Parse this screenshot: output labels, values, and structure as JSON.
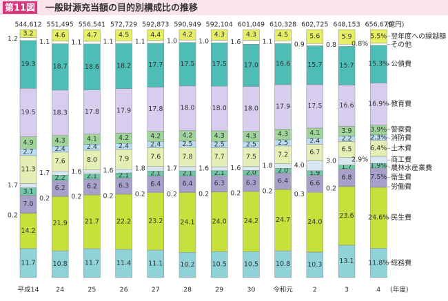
{
  "chart_data": {
    "type": "stacked_bar",
    "figure_label": "第11図",
    "title": "一般財源充当額の目的別構成比の推移",
    "categories": [
      "平成14",
      "24",
      "25",
      "26",
      "27",
      "28",
      "29",
      "30",
      "令和元",
      "2",
      "3",
      "4"
    ],
    "x_unit": "(年度)",
    "totals": {
      "unit": "(億円)",
      "values": [
        544612,
        551495,
        556541,
        572729,
        592873,
        590949,
        592104,
        601049,
        610328,
        602725,
        648153,
        656679
      ],
      "value_labels": [
        "544,612",
        "551,495",
        "556,541",
        "572,729",
        "592,873",
        "590,949",
        "592,104",
        "601,049",
        "610,328",
        "602,725",
        "648,153",
        "656,679"
      ]
    },
    "series": [
      {
        "name": "総務費",
        "color": "#8fd3d8",
        "values": [
          11.7,
          10.8,
          11.7,
          11.4,
          11.1,
          10.2,
          10.5,
          10.5,
          10.8,
          10.3,
          13.1,
          11.8
        ],
        "value_labels": [
          "11.7",
          "10.8",
          "11.7",
          "11.4",
          "11.1",
          "10.2",
          "10.5",
          "10.5",
          "10.8",
          "10.3",
          "13.1",
          "11.8%"
        ]
      },
      {
        "name": "民生費",
        "color": "#c8e03c",
        "values": [
          14.2,
          21.9,
          21.7,
          22.2,
          23.2,
          24.1,
          24.0,
          24.2,
          24.7,
          24.0,
          23.6,
          24.6
        ],
        "value_labels": [
          "14.2",
          "21.9",
          "21.7",
          "22.2",
          "23.2",
          "24.1",
          "24.0",
          "24.2",
          "24.7",
          "24.0",
          "23.6",
          "24.6%"
        ]
      },
      {
        "name": "労働費",
        "color": "#ffffff",
        "values": [
          0.2,
          0.2,
          0.2,
          0.2,
          0.2,
          0.2,
          0.2,
          0.2,
          0.2,
          0.3,
          0.2,
          0.2
        ],
        "value_labels": [
          "0.2",
          "0.2",
          "0.2",
          "0.2",
          "0.2",
          "0.2",
          "0.2",
          "0.2",
          "0.2",
          "0.3",
          "0.2",
          null
        ]
      },
      {
        "name": "衛生費",
        "color": "#a99fcb",
        "values": [
          7.0,
          6.2,
          6.2,
          6.3,
          6.4,
          6.4,
          6.3,
          6.3,
          6.4,
          6.6,
          6.8,
          7.5
        ],
        "value_labels": [
          "7.0",
          "6.2",
          "6.2",
          "6.3",
          "6.4",
          "6.4",
          "6.3",
          "6.3",
          "6.4",
          "6.6",
          "6.8",
          "7.5%"
        ]
      },
      {
        "name": "農林水産業費",
        "color": "#6fc7a6",
        "values": [
          3.1,
          2.2,
          2.1,
          2.1,
          2.1,
          2.1,
          2.1,
          2.0,
          2.0,
          1.9,
          1.7,
          1.9
        ],
        "value_labels": [
          "3.1",
          "2.2",
          "2.1",
          "2.1",
          "2.1",
          "2.1",
          "2.1",
          "2.0",
          "2.0",
          "1.9",
          "1.7",
          "1.9%"
        ]
      },
      {
        "name": "商工費",
        "color": "#d7e7ef",
        "values": [
          1.7,
          1.7,
          1.6,
          1.6,
          1.8,
          1.7,
          1.6,
          1.6,
          1.8,
          4.0,
          3.0,
          2.9
        ],
        "value_labels": [
          "1.7",
          "1.7",
          "1.6",
          "1.6",
          "1.8",
          "1.7",
          "1.6",
          "1.6",
          "1.8",
          "4.0",
          "3.0",
          "2.9%"
        ]
      },
      {
        "name": "土木費",
        "color": "#e3efb5",
        "values": [
          11.3,
          7.6,
          8.0,
          7.9,
          7.6,
          7.8,
          7.7,
          7.5,
          7.2,
          6.7,
          6.5,
          6.4
        ],
        "value_labels": [
          "11.3",
          "7.6",
          "8.0",
          "7.9",
          "7.6",
          "7.8",
          "7.7",
          "7.5",
          "7.2",
          "6.7",
          "6.5",
          "6.4%"
        ]
      },
      {
        "name": "消防費",
        "color": "#b8dcf2",
        "values": [
          2.7,
          2.4,
          2.4,
          2.4,
          2.4,
          2.5,
          2.5,
          2.5,
          2.5,
          2.4,
          2.2,
          2.3
        ],
        "value_labels": [
          "2.7",
          "2.4",
          "2.4",
          "2.4",
          "2.4",
          "2.5",
          "2.5",
          "2.5",
          "2.5",
          "2.4",
          "2.2",
          "2.3%"
        ]
      },
      {
        "name": "警察費",
        "color": "#9fd59a",
        "values": [
          4.9,
          4.3,
          4.1,
          4.2,
          4.2,
          4.2,
          4.3,
          4.3,
          4.3,
          4.1,
          3.9,
          3.9
        ],
        "value_labels": [
          "4.9",
          "4.3",
          "4.1",
          "4.2",
          "4.2",
          "4.2",
          "4.3",
          "4.3",
          "4.3",
          "4.1",
          "3.9",
          "3.9%"
        ]
      },
      {
        "name": "教育費",
        "color": "#d9cdef",
        "values": [
          19.5,
          18.3,
          17.8,
          17.9,
          17.8,
          18.0,
          18.0,
          18.0,
          17.9,
          17.5,
          16.6,
          16.9
        ],
        "value_labels": [
          "19.5",
          "18.3",
          "17.8",
          "17.9",
          "17.8",
          "18.0",
          "18.0",
          "18.0",
          "17.9",
          "17.5",
          "16.6",
          "16.9%"
        ]
      },
      {
        "name": "公債費",
        "color": "#4dbdb5",
        "values": [
          19.3,
          18.7,
          18.6,
          18.2,
          17.7,
          17.5,
          17.5,
          17.0,
          16.6,
          15.7,
          15.7,
          15.3
        ],
        "value_labels": [
          "19.3",
          "18.7",
          "18.6",
          "18.2",
          "17.7",
          "17.5",
          "17.5",
          "17.0",
          "16.6",
          "15.7",
          "15.7",
          "15.3%"
        ]
      },
      {
        "name": "その他",
        "color": "#ffffff",
        "values": [
          1.2,
          1.1,
          1.1,
          1.1,
          1.1,
          1.0,
          1.0,
          1.6,
          1.1,
          0.9,
          0.8,
          0.8
        ],
        "value_labels": [
          "1.2",
          "1.1",
          "1.1",
          "1.1",
          "1.1",
          "1.0",
          "1.0",
          "1.6",
          "1.1",
          "0.9",
          "0.8",
          "0.8%"
        ]
      },
      {
        "name": "翌年度への繰越額",
        "color": "#e6ee66",
        "values": [
          3.2,
          4.6,
          4.7,
          4.5,
          4.4,
          4.2,
          4.3,
          4.3,
          4.5,
          5.6,
          5.9,
          5.5
        ],
        "value_labels": [
          "3.2",
          "4.6",
          "4.7",
          "4.5",
          "4.4",
          "4.2",
          "4.3",
          "4.3",
          "4.5",
          "5.6",
          "5.9",
          "5.5%"
        ]
      }
    ]
  }
}
